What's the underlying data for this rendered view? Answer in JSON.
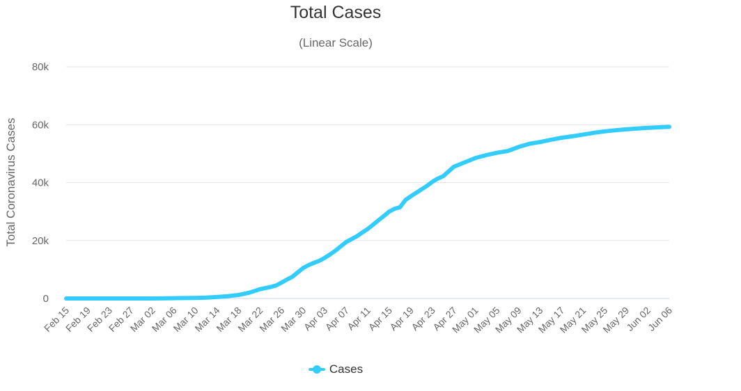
{
  "chart_data": {
    "type": "line",
    "title": "Total Cases",
    "subtitle": "(Linear Scale)",
    "ylabel": "Total Coronavirus Cases",
    "xlabel": "",
    "ylim": [
      0,
      80000
    ],
    "yticks": [
      0,
      20000,
      40000,
      60000,
      80000
    ],
    "ytick_labels": [
      "0",
      "20k",
      "40k",
      "60k",
      "80k"
    ],
    "xtick_labels": [
      "Feb 15",
      "Feb 19",
      "Feb 23",
      "Feb 27",
      "Mar 02",
      "Mar 06",
      "Mar 10",
      "Mar 14",
      "Mar 18",
      "Mar 22",
      "Mar 26",
      "Mar 30",
      "Apr 03",
      "Apr 07",
      "Apr 11",
      "Apr 15",
      "Apr 19",
      "Apr 23",
      "Apr 27",
      "May 01",
      "May 05",
      "May 09",
      "May 13",
      "May 17",
      "May 21",
      "May 25",
      "May 29",
      "Jun 02",
      "Jun 06"
    ],
    "grid": true,
    "legend_position": "bottom-center",
    "series": [
      {
        "name": "Cases",
        "color": "#33ccff",
        "x": [
          "Feb 15",
          "Feb 19",
          "Feb 23",
          "Feb 27",
          "Mar 02",
          "Mar 06",
          "Mar 10",
          "Mar 12",
          "Mar 14",
          "Mar 16",
          "Mar 18",
          "Mar 20",
          "Mar 22",
          "Mar 24",
          "Mar 25",
          "Mar 26",
          "Mar 27",
          "Mar 28",
          "Mar 29",
          "Mar 30",
          "Mar 31",
          "Apr 01",
          "Apr 02",
          "Apr 03",
          "Apr 04",
          "Apr 05",
          "Apr 06",
          "Apr 07",
          "Apr 08",
          "Apr 09",
          "Apr 10",
          "Apr 11",
          "Apr 12",
          "Apr 13",
          "Apr 14",
          "Apr 15",
          "Apr 16",
          "Apr 17",
          "Apr 18",
          "Apr 19",
          "Apr 20",
          "Apr 21",
          "Apr 22",
          "Apr 23",
          "Apr 24",
          "Apr 25",
          "Apr 27",
          "May 01",
          "May 03",
          "May 05",
          "May 07",
          "May 09",
          "May 11",
          "May 13",
          "May 15",
          "May 17",
          "May 19",
          "May 21",
          "May 23",
          "May 25",
          "May 27",
          "May 29",
          "May 31",
          "Jun 02",
          "Jun 04",
          "Jun 06"
        ],
        "values": [
          0,
          0,
          0,
          0,
          0,
          100,
          200,
          300,
          500,
          800,
          1200,
          2000,
          3200,
          4000,
          4500,
          5500,
          6500,
          7500,
          9000,
          10500,
          11500,
          12300,
          13000,
          14000,
          15200,
          16500,
          18000,
          19500,
          20500,
          21500,
          22800,
          24000,
          25500,
          27000,
          28500,
          30000,
          31000,
          31500,
          34000,
          35300,
          36500,
          37700,
          38900,
          40300,
          41400,
          42200,
          45500,
          48500,
          49500,
          50300,
          50900,
          52300,
          53400,
          54000,
          54800,
          55500,
          56000,
          56600,
          57200,
          57700,
          58100,
          58400,
          58700,
          58900,
          59100,
          59300
        ]
      }
    ]
  }
}
